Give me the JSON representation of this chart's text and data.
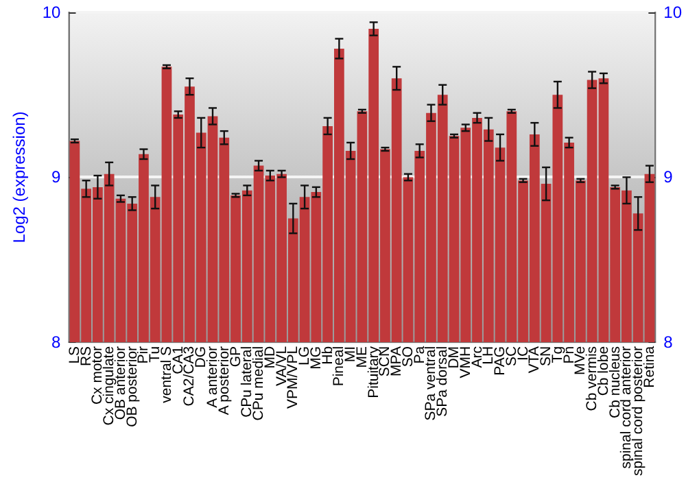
{
  "chart_data": {
    "type": "bar",
    "ylabel": "Log2 (expression)",
    "categories": [
      "LS",
      "RS",
      "Cx motor",
      "Cx cingulate",
      "OB anterior",
      "OB posterior",
      "Pir",
      "Tu",
      "ventral S",
      "CA1",
      "CA2/CA3",
      "DG",
      "A anterior",
      "A posterior",
      "GP",
      "CPu lateral",
      "CPu medial",
      "MD",
      "VA/VL",
      "VPM/VPL",
      "LG",
      "MG",
      "Hb",
      "Pineal",
      "MI",
      "ME",
      "Pituitary",
      "SCN",
      "MPA",
      "SO",
      "Pa",
      "SPa ventral",
      "SPa dorsal",
      "DM",
      "VMH",
      "Arc",
      "LH",
      "PAG",
      "SC",
      "IC",
      "VTA",
      "SN",
      "Tg",
      "Pn",
      "MVe",
      "Cb vermis",
      "Cb lobe",
      "Cb nucleus",
      "spinal cord anterior",
      "spinal cord posterior",
      "Retina"
    ],
    "values": [
      9.22,
      8.93,
      8.94,
      9.02,
      8.87,
      8.84,
      9.14,
      8.88,
      9.67,
      9.38,
      9.55,
      9.27,
      9.37,
      9.24,
      8.89,
      8.92,
      9.07,
      9.01,
      9.02,
      8.75,
      8.88,
      8.91,
      9.31,
      9.78,
      9.16,
      9.4,
      9.9,
      9.17,
      9.6,
      9.0,
      9.16,
      9.39,
      9.5,
      9.25,
      9.3,
      9.36,
      9.29,
      9.18,
      9.4,
      8.98,
      9.26,
      8.96,
      9.5,
      9.21,
      8.98,
      9.59,
      9.6,
      8.94,
      8.92,
      8.78,
      9.02
    ],
    "errors": [
      0.01,
      0.05,
      0.07,
      0.07,
      0.02,
      0.04,
      0.03,
      0.07,
      0.01,
      0.02,
      0.05,
      0.09,
      0.05,
      0.04,
      0.01,
      0.03,
      0.03,
      0.03,
      0.02,
      0.09,
      0.07,
      0.03,
      0.05,
      0.06,
      0.05,
      0.01,
      0.04,
      0.01,
      0.07,
      0.02,
      0.04,
      0.05,
      0.06,
      0.01,
      0.02,
      0.03,
      0.07,
      0.08,
      0.01,
      0.01,
      0.07,
      0.1,
      0.08,
      0.03,
      0.01,
      0.05,
      0.03,
      0.01,
      0.08,
      0.1,
      0.05
    ],
    "color": "#c0393b",
    "ylim": [
      8,
      10
    ],
    "yticks": [
      8,
      9,
      10
    ],
    "y2lim": [
      8,
      10
    ],
    "y2ticks": [
      8,
      9,
      10
    ],
    "grid": "y"
  }
}
